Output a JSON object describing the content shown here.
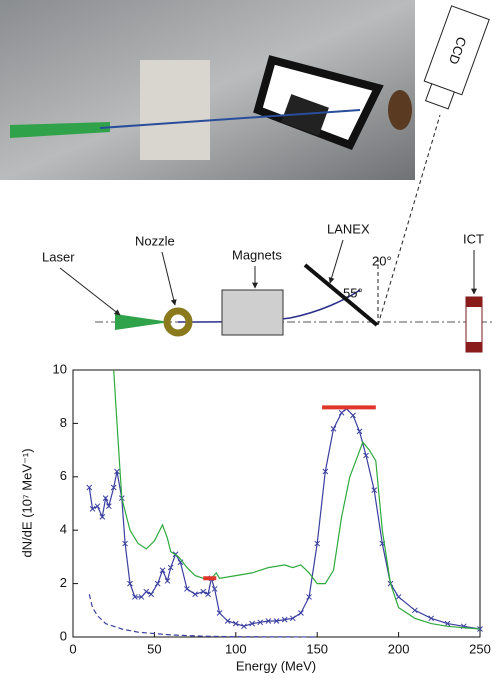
{
  "diagram": {
    "labels": {
      "ccd": "CCD",
      "laser": "Laser",
      "nozzle": "Nozzle",
      "magnets": "Magnets",
      "lanex": "LANEX",
      "ict": "ICT",
      "angle_lanex": "55°",
      "angle_ccd": "20°"
    }
  },
  "chart_data": {
    "type": "line",
    "x_label": "Energy (MeV)",
    "y_label": "dN/dE (10⁷ MeV⁻¹)",
    "xlim": [
      0,
      250
    ],
    "ylim": [
      0,
      10
    ],
    "xticks": [
      0,
      50,
      100,
      150,
      200,
      250
    ],
    "yticks": [
      0,
      2,
      4,
      6,
      8,
      10
    ],
    "series": [
      {
        "color": "#3a3fa0",
        "marker": "x",
        "dash": false,
        "x": [
          10,
          12,
          15,
          18,
          20,
          22,
          25,
          27,
          30,
          32,
          35,
          38,
          42,
          45,
          48,
          52,
          55,
          58,
          60,
          63,
          66,
          70,
          75,
          80,
          83,
          85,
          87,
          90,
          95,
          100,
          105,
          110,
          115,
          120,
          125,
          130,
          135,
          140,
          145,
          150,
          155,
          160,
          165,
          168,
          172,
          176,
          180,
          185,
          190,
          195,
          200,
          210,
          220,
          230,
          240,
          250
        ],
        "values": [
          5.6,
          4.8,
          4.9,
          4.5,
          5.2,
          4.9,
          5.6,
          6.2,
          5.2,
          3.5,
          2.0,
          1.5,
          1.5,
          1.7,
          1.6,
          2.0,
          2.5,
          2.1,
          2.6,
          3.1,
          2.8,
          1.8,
          1.6,
          1.7,
          1.6,
          2.2,
          1.8,
          0.9,
          0.6,
          0.5,
          0.4,
          0.5,
          0.55,
          0.6,
          0.6,
          0.65,
          0.7,
          0.9,
          1.5,
          3.5,
          6.2,
          7.8,
          8.4,
          8.55,
          8.3,
          7.7,
          6.8,
          5.5,
          3.5,
          2.0,
          1.5,
          1.0,
          0.7,
          0.5,
          0.4,
          0.3
        ]
      },
      {
        "color": "#2eaa3c",
        "marker": "none",
        "dash": false,
        "x": [
          25,
          27,
          30,
          35,
          40,
          45,
          50,
          55,
          58,
          60,
          65,
          70,
          75,
          80,
          85,
          88,
          90,
          100,
          110,
          120,
          130,
          135,
          140,
          145,
          150,
          155,
          160,
          165,
          170,
          175,
          178,
          182,
          186,
          190,
          195,
          200,
          210,
          220,
          230,
          240,
          250
        ],
        "values": [
          10,
          8,
          5.2,
          4.0,
          3.5,
          3.3,
          3.6,
          4.2,
          3.7,
          3.2,
          3.0,
          2.6,
          2.3,
          2.2,
          2.2,
          2.4,
          2.2,
          2.3,
          2.4,
          2.6,
          2.7,
          2.6,
          2.7,
          2.4,
          2.0,
          2.0,
          2.5,
          4.5,
          6.0,
          6.8,
          7.3,
          7.0,
          6.6,
          4.0,
          2.0,
          1.1,
          0.7,
          0.5,
          0.4,
          0.35,
          0.3
        ]
      },
      {
        "color": "#3a3fa0",
        "marker": "none",
        "dash": true,
        "x": [
          10,
          12,
          15,
          20,
          30,
          40,
          60,
          80,
          100,
          150
        ],
        "values": [
          1.6,
          1.1,
          0.8,
          0.5,
          0.3,
          0.18,
          0.08,
          0.03,
          0.01,
          0
        ]
      }
    ],
    "ranges": [
      {
        "color": "#e0352b",
        "x": [
          80,
          88
        ],
        "y": 2.2
      },
      {
        "color": "#e0352b",
        "x": [
          153,
          186
        ],
        "y": 8.6
      }
    ]
  }
}
